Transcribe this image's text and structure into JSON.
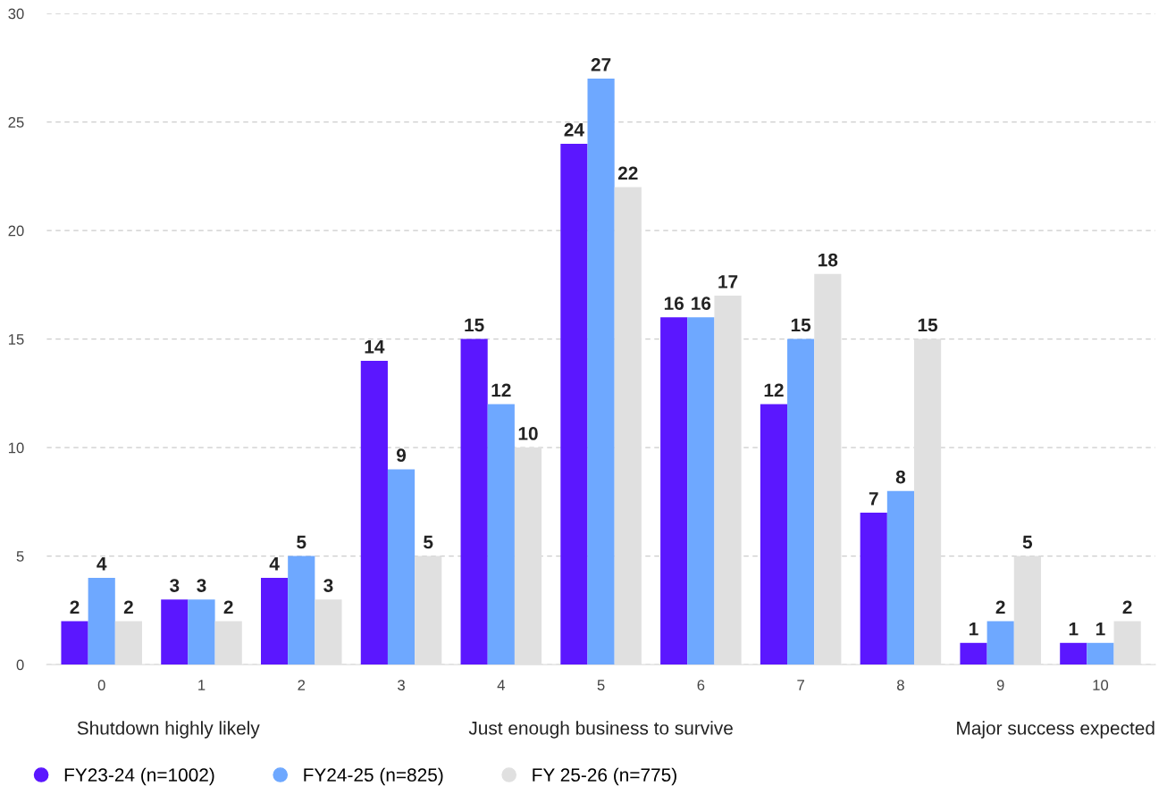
{
  "chart_data": {
    "type": "bar",
    "categories": [
      "0",
      "1",
      "2",
      "3",
      "4",
      "5",
      "6",
      "7",
      "8",
      "9",
      "10"
    ],
    "series": [
      {
        "name": "FY23-24 (n=1002)",
        "color": "#5b17ff",
        "values": [
          2,
          3,
          4,
          14,
          15,
          24,
          16,
          12,
          7,
          1,
          1
        ]
      },
      {
        "name": "FY24-25 (n=825)",
        "color": "#6ea8ff",
        "values": [
          4,
          3,
          5,
          9,
          12,
          27,
          16,
          15,
          8,
          2,
          1
        ]
      },
      {
        "name": "FY 25-26 (n=775)",
        "color": "#e0e0e0",
        "values": [
          2,
          2,
          3,
          5,
          10,
          22,
          17,
          18,
          15,
          5,
          2
        ]
      }
    ],
    "ylim": [
      0,
      30
    ],
    "yticks": [
      0,
      5,
      10,
      15,
      20,
      25,
      30
    ],
    "grid": "y",
    "legend": "bottom left",
    "data_labels": true,
    "annotations": [
      "Shutdown highly likely",
      "Just enough business to survive",
      "Major success expected"
    ]
  }
}
